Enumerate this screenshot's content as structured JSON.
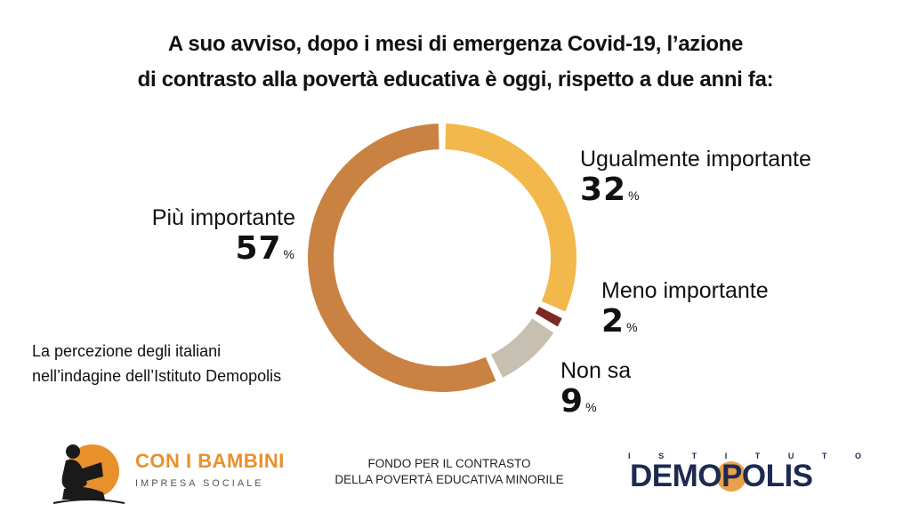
{
  "title": {
    "line1": "A suo avviso, dopo i mesi di emergenza Covid-19, l’azione",
    "line2": "di contrasto alla povertà educativa è oggi, rispetto a due anni fa:"
  },
  "chart_data": {
    "type": "pie",
    "donut": true,
    "categories": [
      "Ugualmente importante",
      "Meno importante",
      "Non sa",
      "Più importante"
    ],
    "values": [
      32,
      2,
      9,
      57
    ],
    "value_labels": [
      "32",
      "2",
      "9",
      "57"
    ],
    "unit": "%",
    "colors": [
      "#f2b84b",
      "#7a2a22",
      "#c7bfb0",
      "#c98242"
    ]
  },
  "note": {
    "line1": "La percezione degli italiani",
    "line2": "nell’indagine dell’Istituto Demopolis"
  },
  "footer": {
    "left_brand": "CON I BAMBINI",
    "left_sub": "IMPRESA SOCIALE",
    "center_line1": "FONDO PER IL CONTRASTO",
    "center_line2": "DELLA POVERTÀ EDUCATIVA MINORILE",
    "right_top": "ISTITUTO",
    "right_main": "DEMOPOLIS"
  }
}
